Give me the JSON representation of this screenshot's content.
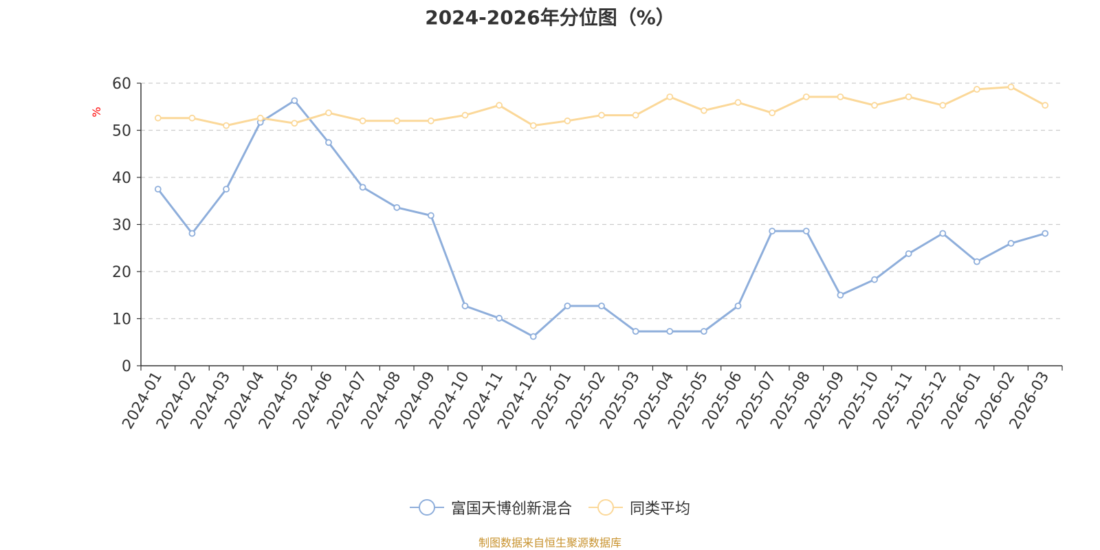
{
  "chart_data": {
    "type": "line",
    "title": "2024-2026年分位图（%）",
    "ylabel": "%",
    "xlabel": "",
    "ylim": [
      0,
      60
    ],
    "yticks": [
      0,
      10,
      20,
      30,
      40,
      50,
      60
    ],
    "grid": true,
    "legend_position": "bottom-center",
    "categories": [
      "2024-01",
      "2024-02",
      "2024-03",
      "2024-04",
      "2024-05",
      "2024-06",
      "2024-07",
      "2024-08",
      "2024-09",
      "2024-10",
      "2024-11",
      "2024-12",
      "2025-01",
      "2025-02",
      "2025-03",
      "2025-04",
      "2025-05",
      "2025-06",
      "2025-07",
      "2025-08",
      "2025-09",
      "2025-10",
      "2025-11",
      "2025-12",
      "2026-01",
      "2026-02",
      "2026-03"
    ],
    "series": [
      {
        "name": "富国天博创新混合",
        "color": "#8eaedb",
        "values": [
          37.5,
          28.1,
          37.5,
          51.7,
          56.3,
          47.4,
          37.9,
          33.6,
          31.9,
          12.7,
          10.1,
          6.2,
          12.7,
          12.7,
          7.3,
          7.3,
          7.3,
          12.7,
          28.6,
          28.6,
          15.0,
          18.3,
          23.8,
          28.1,
          22.1,
          26.0,
          28.1
        ]
      },
      {
        "name": "同类平均",
        "color": "#fbd899",
        "values": [
          52.6,
          52.6,
          51.0,
          52.6,
          51.5,
          53.7,
          52.0,
          52.0,
          52.0,
          53.2,
          55.3,
          51.0,
          52.0,
          53.2,
          53.2,
          57.1,
          54.2,
          55.9,
          53.7,
          57.1,
          57.1,
          55.3,
          57.1,
          55.3,
          58.7,
          59.2,
          55.3
        ]
      }
    ]
  },
  "source_note": "制图数据来自恒生聚源数据库"
}
